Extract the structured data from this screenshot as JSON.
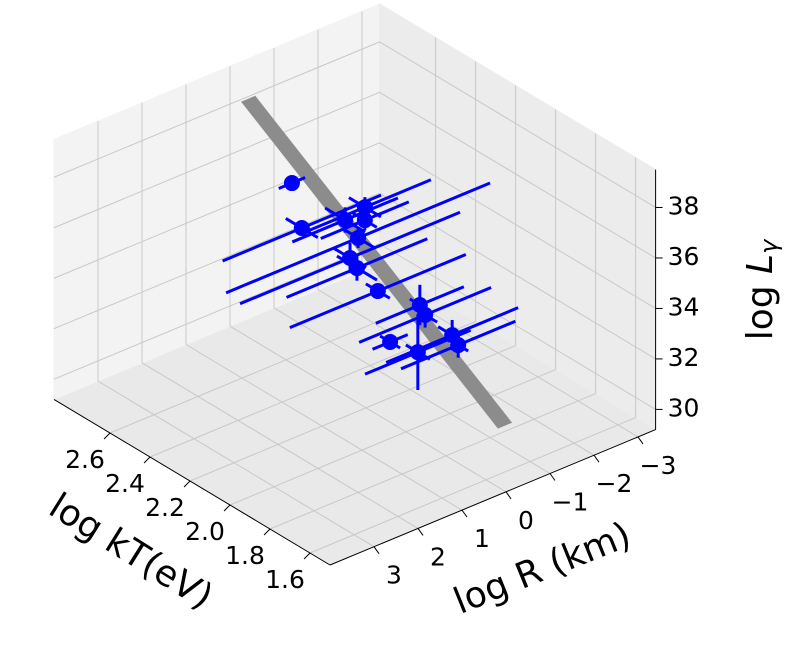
{
  "chart_data": {
    "type": "scatter3d",
    "xlabel": "log kT(eV)",
    "ylabel": "log R (km)",
    "zlabel": [
      "log ",
      "L",
      "γ"
    ],
    "xlim": [
      1.5,
      2.88
    ],
    "ylim": [
      4.0,
      -3.4
    ],
    "zlim": [
      29.2,
      39.5
    ],
    "xticks": [
      1.6,
      1.8,
      {
        "value": 2.0,
        "label": "2.0"
      },
      2.2,
      2.4,
      2.6
    ],
    "yticks": [
      3,
      2,
      1,
      0,
      {
        "value": -1,
        "label": "−1"
      },
      {
        "value": -2,
        "label": "−2"
      },
      {
        "value": -3,
        "label": "−3"
      }
    ],
    "zticks": [
      30,
      32,
      34,
      36,
      38
    ],
    "grid": true,
    "plane": {
      "color": "#8c8c8c",
      "x": [
        2.88,
        2.88,
        1.5,
        1.5
      ],
      "y": [
        -0.27,
        -0.57,
        -0.12,
        0.18
      ],
      "z": [
        37.89,
        37.89,
        31.86,
        31.86
      ]
    },
    "series": [
      {
        "color": "#0000ff",
        "x": [
          2.5,
          2.3,
          2.4,
          2.3,
          2.2,
          2.1,
          2.0,
          1.9,
          1.9,
          1.8,
          1.8,
          1.8,
          1.75,
          2.25,
          2.15
        ],
        "y": [
          0.32,
          -0.43,
          0.55,
          0.02,
          0.18,
          0.66,
          0.64,
          0.14,
          0.02,
          1.27,
          0.64,
          -0.14,
          -0.05,
          -0.2,
          0.59
        ],
        "z": [
          36.91,
          36.36,
          35.77,
          36.18,
          36.06,
          35.69,
          35.24,
          34.8,
          34.32,
          34.63,
          33.77,
          33.88,
          33.79,
          36.25,
          35.8
        ],
        "xerr": [
          0.03,
          0.08,
          0.08,
          0.1,
          0.08,
          0.1,
          0.06,
          0.05,
          0.06,
          0.05,
          0.06,
          0.07,
          0.05,
          0.06,
          0.08
        ],
        "yerr": [
          0.3,
          1.5,
          1.8,
          1.2,
          3.0,
          1.6,
          2.0,
          1.0,
          1.5,
          0.4,
          1.2,
          1.5,
          1.3,
          1.0,
          2.5
        ],
        "zerr": [
          0.3,
          0.4,
          0.2,
          0.5,
          0.4,
          0.5,
          0.3,
          0.8,
          0.5,
          0.3,
          1.5,
          0.6,
          0.5,
          0.4,
          0.6
        ]
      }
    ]
  }
}
